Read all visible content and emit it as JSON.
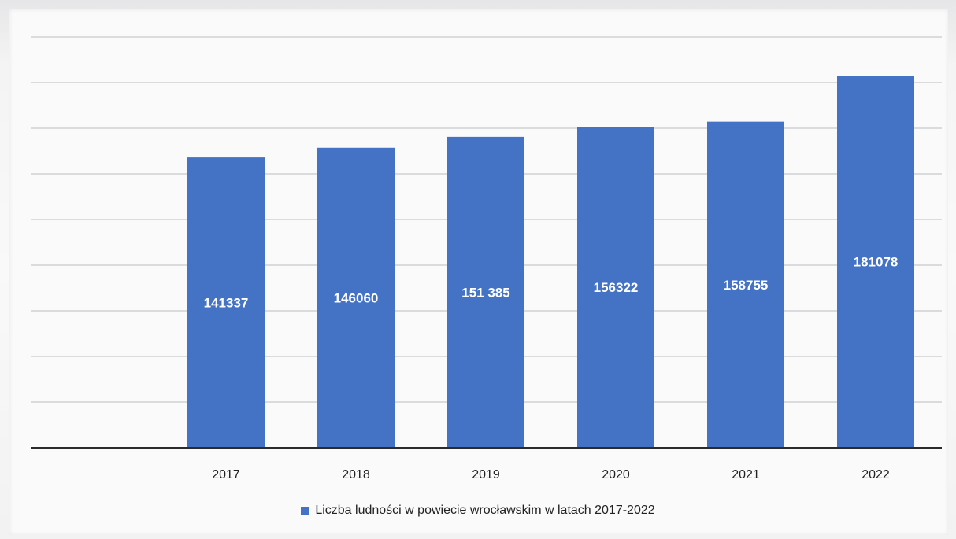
{
  "chart_data": {
    "type": "bar",
    "title": "",
    "xlabel": "",
    "ylabel": "",
    "categories": [
      "2017",
      "2018",
      "2019",
      "2020",
      "2021",
      "2022"
    ],
    "series": [
      {
        "name": "Liczba ludności w powiecie wrocławskim w latach 2017-2022",
        "values": [
          141337,
          146060,
          151385,
          156322,
          158755,
          181078
        ],
        "data_labels": [
          "141337",
          "146060",
          "151 385",
          "156322",
          "158755",
          "181078"
        ],
        "color": "#4472c4"
      }
    ],
    "ylim": [
      0,
      200000
    ],
    "grid": true,
    "legend_position": "bottom",
    "y_axis_tick_labels_visible": false
  }
}
